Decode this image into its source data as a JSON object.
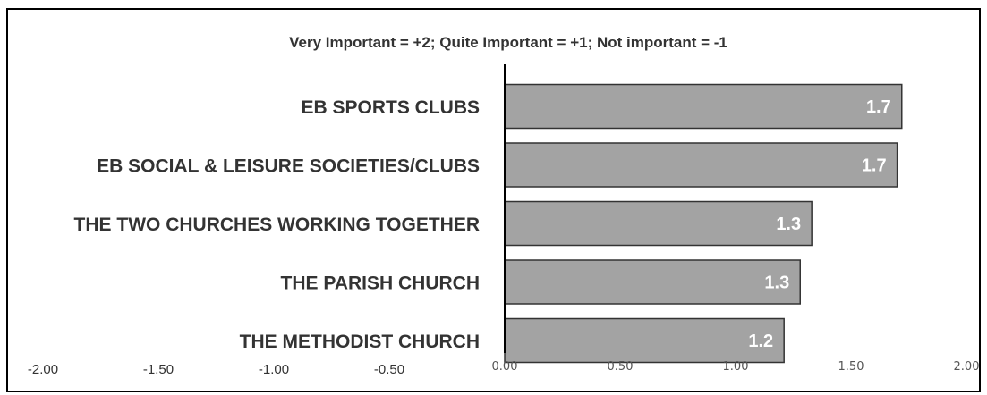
{
  "chart_data": {
    "type": "bar",
    "orientation": "horizontal",
    "title": "Very Important = +2; Quite Important = +1; Not important  = -1",
    "categories": [
      "EB SPORTS CLUBS",
      "EB SOCIAL & LEISURE SOCIETIES/CLUBS",
      "THE TWO CHURCHES WORKING TOGETHER",
      "THE PARISH CHURCH",
      "THE METHODIST CHURCH"
    ],
    "values": [
      1.72,
      1.7,
      1.33,
      1.28,
      1.21
    ],
    "value_labels": [
      "1.7",
      "1.7",
      "1.3",
      "1.3",
      "1.2"
    ],
    "xlim": [
      -2.0,
      2.0
    ],
    "xticks": [
      "-2.00",
      "-1.50",
      "-1.00",
      "-0.50",
      "0.00",
      "0.50",
      "1.00",
      "1.50",
      "2.00"
    ],
    "grid": false,
    "legend": "none",
    "colors": {
      "bar_fill": "#a3a3a3",
      "bar_stroke": "#333333",
      "axis": "#000000",
      "frame": "#000000"
    }
  }
}
